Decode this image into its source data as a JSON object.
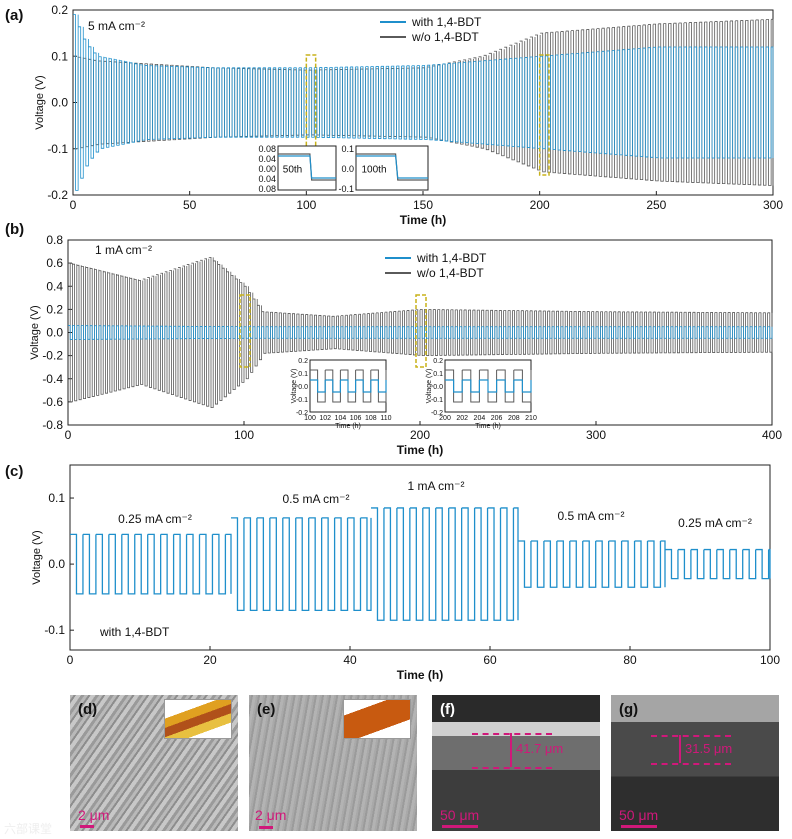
{
  "colors": {
    "with": "#1f8fcb",
    "without": "#5a5a5a",
    "highlight": "#c8b21a",
    "scale": "#d0187a"
  },
  "chart_data": [
    {
      "panel": "(a)",
      "type": "line",
      "title": "5 mA cm⁻²",
      "xlabel": "Time (h)",
      "ylabel": "Voltage (V)",
      "xlim": [
        0,
        300
      ],
      "ylim": [
        -0.2,
        0.2
      ],
      "xticks": [
        "0",
        "50",
        "100",
        "150",
        "200",
        "250",
        "300"
      ],
      "yticks": [
        "-0.2",
        "-0.1",
        "0.0",
        "0.1",
        "0.2"
      ],
      "legend": [
        "with 1,4-BDT",
        "w/o  1,4-BDT"
      ],
      "highlight_windows_h": [
        [
          100,
          104
        ],
        [
          200,
          204
        ]
      ],
      "series": [
        {
          "name": "with 1,4-BDT",
          "amp_time": [
            0,
            5,
            10,
            30,
            60,
            100,
            150,
            200,
            250,
            300
          ],
          "amp": [
            0.19,
            0.13,
            0.1,
            0.08,
            0.075,
            0.075,
            0.08,
            0.1,
            0.12,
            0.12
          ]
        },
        {
          "name": "w/o  1,4-BDT",
          "amp_time": [
            0,
            10,
            60,
            100,
            150,
            175,
            200,
            250,
            300
          ],
          "amp": [
            0.1,
            0.09,
            0.075,
            0.07,
            0.075,
            0.1,
            0.15,
            0.17,
            0.18
          ]
        }
      ],
      "insets": [
        {
          "label": "50th",
          "yticks": [
            "0.08",
            "0.04",
            "0.00",
            "0.04",
            "0.08"
          ]
        },
        {
          "label": "100th",
          "yticks": [
            "0.1",
            "0.0",
            "-0.1"
          ]
        }
      ]
    },
    {
      "panel": "(b)",
      "type": "line",
      "title": "1 mA cm⁻²",
      "xlabel": "Time (h)",
      "ylabel": "Voltage (V)",
      "xlim": [
        0,
        400
      ],
      "ylim": [
        -0.8,
        0.8
      ],
      "xticks": [
        "0",
        "100",
        "200",
        "300",
        "400"
      ],
      "yticks": [
        "-0.8",
        "-0.6",
        "-0.4",
        "-0.2",
        "0.0",
        "0.2",
        "0.4",
        "0.6",
        "0.8"
      ],
      "legend": [
        "with 1,4-BDT",
        "w/o  1,4-BDT"
      ],
      "highlight_windows_h": [
        [
          100,
          110
        ],
        [
          200,
          210
        ]
      ],
      "series": [
        {
          "name": "with 1,4-BDT",
          "amp_time": [
            0,
            100,
            400
          ],
          "amp": [
            0.06,
            0.05,
            0.05
          ]
        },
        {
          "name": "w/o  1,4-BDT",
          "amp_time": [
            0,
            40,
            80,
            100,
            110,
            150,
            200,
            300,
            400
          ],
          "amp": [
            0.6,
            0.45,
            0.65,
            0.4,
            0.18,
            0.14,
            0.2,
            0.18,
            0.17
          ]
        }
      ],
      "insets": [
        {
          "xticks": [
            "100",
            "102",
            "104",
            "106",
            "108",
            "110"
          ],
          "yticks": [
            "0.2",
            "0.1",
            "0.0",
            "-0.1",
            "-0.2"
          ],
          "xlabel": "Time (h)",
          "ylabel": "Voltage (V)"
        },
        {
          "xticks": [
            "200",
            "202",
            "204",
            "206",
            "208",
            "210"
          ],
          "yticks": [
            "0.2",
            "0.1",
            "0.0",
            "-0.1",
            "-0.2"
          ],
          "xlabel": "Time (h)",
          "ylabel": "Voltage (V)"
        }
      ]
    },
    {
      "panel": "(c)",
      "type": "line",
      "xlabel": "Time (h)",
      "ylabel": "Voltage (V)",
      "xlim": [
        0,
        100
      ],
      "ylim": [
        -0.13,
        0.15
      ],
      "xticks": [
        "0",
        "20",
        "40",
        "60",
        "80",
        "100"
      ],
      "yticks": [
        "-0.1",
        "0.0",
        "0.1"
      ],
      "series_label": "with 1,4-BDT",
      "segments": [
        {
          "label": "0.25 mA cm⁻²",
          "t_start": 0,
          "t_end": 23,
          "high": 0.045,
          "low": -0.045
        },
        {
          "label": "0.5 mA cm⁻²",
          "t_start": 23,
          "t_end": 43,
          "high": 0.07,
          "low": -0.07
        },
        {
          "label": "1 mA cm⁻²",
          "t_start": 43,
          "t_end": 64,
          "high": 0.085,
          "low": -0.085
        },
        {
          "label": "0.5 mA cm⁻²",
          "t_start": 64,
          "t_end": 85,
          "high": 0.035,
          "low": -0.035
        },
        {
          "label": "0.25 mA cm⁻²",
          "t_start": 85,
          "t_end": 100,
          "high": 0.022,
          "low": -0.022
        }
      ]
    }
  ],
  "micrographs": [
    {
      "label": "(d)",
      "scale": "2 μm"
    },
    {
      "label": "(e)",
      "scale": "2 μm"
    },
    {
      "label": "(f)",
      "scale": "50 μm",
      "thickness": "41.7 μm"
    },
    {
      "label": "(g)",
      "scale": "50 μm",
      "thickness": "31.5 μm"
    }
  ],
  "watermark": "六部课堂"
}
